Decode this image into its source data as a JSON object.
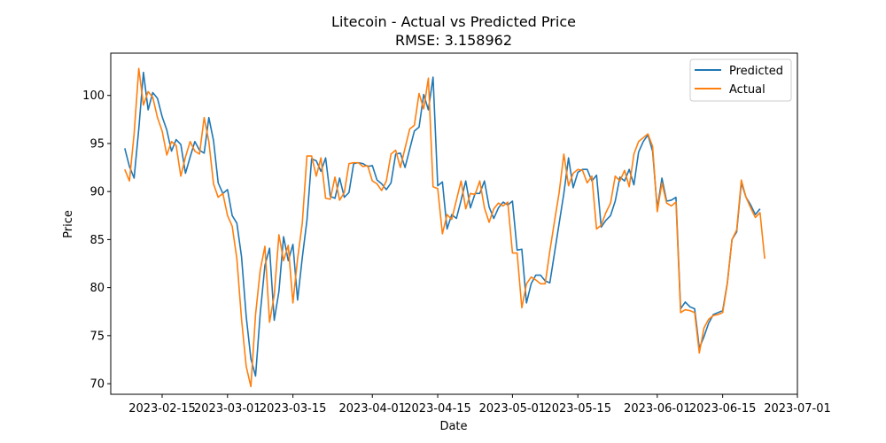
{
  "chart_data": {
    "type": "line",
    "title": "Litecoin - Actual vs Predicted Price",
    "subtitle": "RMSE: 3.158962",
    "xlabel": "Date",
    "ylabel": "Price",
    "x_start": "2023-02-07",
    "x_end": "2023-06-28",
    "xlim": [
      "2023-02-04",
      "2023-07-01"
    ],
    "ylim": [
      68.9,
      104.4
    ],
    "x_ticks": [
      {
        "date": "2023-02-15",
        "label": "2023-02-15"
      },
      {
        "date": "2023-03-01",
        "label": "2023-03-01"
      },
      {
        "date": "2023-03-15",
        "label": "2023-03-15"
      },
      {
        "date": "2023-04-01",
        "label": "2023-04-01"
      },
      {
        "date": "2023-04-15",
        "label": "2023-04-15"
      },
      {
        "date": "2023-05-01",
        "label": "2023-05-01"
      },
      {
        "date": "2023-05-15",
        "label": "2023-05-15"
      },
      {
        "date": "2023-06-01",
        "label": "2023-06-01"
      },
      {
        "date": "2023-06-15",
        "label": "2023-06-15"
      },
      {
        "date": "2023-07-01",
        "label": "2023-07-01"
      }
    ],
    "y_ticks": [
      70,
      75,
      80,
      85,
      90,
      95,
      100
    ],
    "legend_position": "top-right",
    "grid": false,
    "series": [
      {
        "name": "Predicted",
        "color": "#1f77b4",
        "values": [
          94.5,
          92.6,
          91.4,
          96.5,
          102.4,
          98.5,
          100.3,
          99.7,
          97.8,
          96.4,
          94.2,
          95.4,
          94.9,
          91.9,
          93.6,
          95.2,
          94.3,
          94.0,
          97.7,
          95.3,
          90.9,
          89.8,
          90.2,
          87.5,
          86.7,
          83.2,
          77.0,
          72.6,
          70.8,
          77.3,
          82.3,
          84.1,
          76.6,
          79.6,
          85.3,
          82.8,
          84.5,
          78.7,
          83.1,
          87.0,
          93.4,
          93.2,
          92.1,
          93.5,
          89.5,
          89.3,
          91.4,
          89.4,
          89.9,
          92.9,
          93.0,
          92.9,
          92.6,
          92.7,
          91.2,
          90.8,
          90.2,
          90.9,
          93.9,
          94.0,
          92.5,
          94.4,
          96.3,
          96.7,
          100.1,
          98.5,
          101.9,
          90.6,
          91.0,
          86.1,
          87.6,
          87.2,
          89.1,
          91.1,
          88.3,
          89.8,
          89.8,
          91.1,
          88.4,
          87.2,
          88.3,
          88.9,
          88.6,
          89.0,
          83.9,
          84.0,
          78.4,
          80.4,
          81.3,
          81.3,
          80.7,
          80.5,
          83.6,
          86.7,
          89.8,
          93.5,
          90.4,
          92.0,
          92.3,
          92.3,
          91.1,
          91.7,
          86.3,
          87.0,
          87.5,
          89.0,
          91.5,
          91.1,
          92.3,
          90.7,
          94.1,
          95.2,
          95.9,
          94.2,
          88.2,
          91.4,
          89.0,
          89.1,
          89.4,
          77.8,
          78.5,
          78.0,
          77.8,
          73.7,
          74.9,
          76.3,
          77.2,
          77.4,
          77.6,
          80.5,
          85.0,
          85.8,
          90.9,
          89.4,
          88.6,
          87.6,
          88.2
        ]
      },
      {
        "name": "Actual",
        "color": "#ff7f0e",
        "values": [
          92.3,
          91.1,
          96.0,
          102.8,
          99.0,
          100.4,
          99.8,
          97.7,
          96.3,
          93.8,
          95.2,
          94.8,
          91.6,
          93.6,
          95.2,
          94.2,
          93.9,
          97.7,
          95.2,
          90.8,
          89.4,
          89.8,
          87.5,
          86.4,
          83.0,
          76.7,
          71.8,
          69.7,
          77.2,
          81.8,
          84.3,
          76.4,
          79.2,
          85.5,
          82.8,
          84.4,
          78.4,
          83.0,
          86.7,
          93.7,
          93.7,
          91.6,
          93.5,
          89.3,
          89.2,
          91.5,
          89.1,
          89.9,
          92.9,
          93.0,
          93.0,
          92.6,
          92.7,
          91.1,
          90.8,
          90.1,
          91.1,
          93.9,
          94.3,
          92.5,
          94.5,
          96.5,
          96.9,
          100.2,
          98.6,
          101.8,
          90.5,
          90.3,
          85.6,
          87.6,
          87.1,
          89.1,
          91.1,
          88.2,
          89.8,
          89.7,
          91.1,
          88.3,
          86.8,
          88.2,
          88.8,
          88.5,
          88.9,
          83.6,
          83.6,
          77.9,
          80.4,
          81.1,
          80.8,
          80.4,
          80.4,
          83.8,
          86.9,
          89.9,
          93.9,
          90.6,
          91.9,
          92.3,
          92.2,
          90.9,
          91.6,
          86.1,
          86.5,
          87.8,
          88.8,
          91.6,
          91.1,
          92.2,
          90.5,
          93.9,
          95.2,
          95.6,
          96.0,
          94.7,
          87.9,
          90.9,
          88.8,
          88.5,
          88.9,
          77.4,
          77.7,
          77.6,
          77.4,
          73.2,
          75.8,
          76.7,
          77.1,
          77.2,
          77.4,
          80.4,
          85.0,
          86.0,
          91.2,
          89.4,
          88.3,
          87.3,
          87.8,
          83.0
        ]
      }
    ]
  }
}
